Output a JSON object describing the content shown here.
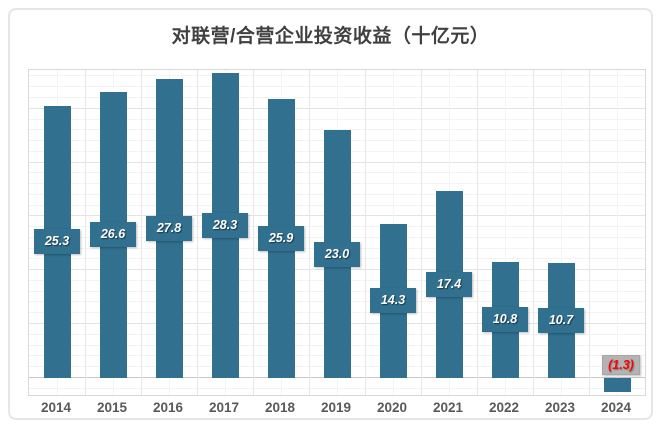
{
  "chart_data": {
    "type": "bar",
    "title": "对联营/合营企业投资收益（十亿元）",
    "categories": [
      "2014",
      "2015",
      "2016",
      "2017",
      "2018",
      "2019",
      "2020",
      "2021",
      "2022",
      "2023",
      "2024"
    ],
    "values": [
      25.3,
      26.6,
      27.8,
      28.3,
      25.9,
      23.0,
      14.3,
      17.4,
      10.8,
      10.7,
      -1.3
    ],
    "data_labels": [
      "25.3",
      "26.6",
      "27.8",
      "28.3",
      "25.9",
      "23.0",
      "14.3",
      "17.4",
      "10.8",
      "10.7",
      "(1.3)"
    ],
    "xlabel": "",
    "ylabel": "",
    "ylim": [
      -1.6,
      28.6
    ],
    "y_major_unit": 5,
    "y_minor_unit": 1,
    "grid": "major+minor horizontal and vertical, no y-axis tick labels",
    "legend": "none",
    "colors": {
      "bar": "#31708f",
      "positive_label_bg": "#31708f",
      "positive_label_text": "#ffffff",
      "negative_label_bg": "#b3b3b3",
      "negative_label_text": "#ff0000",
      "title_text": "#404040",
      "axis_label_text": "#595959",
      "gridline_minor": "#f3f3f3",
      "gridline_major": "#e3e3e3",
      "zero_line": "#c7c7c7"
    }
  }
}
